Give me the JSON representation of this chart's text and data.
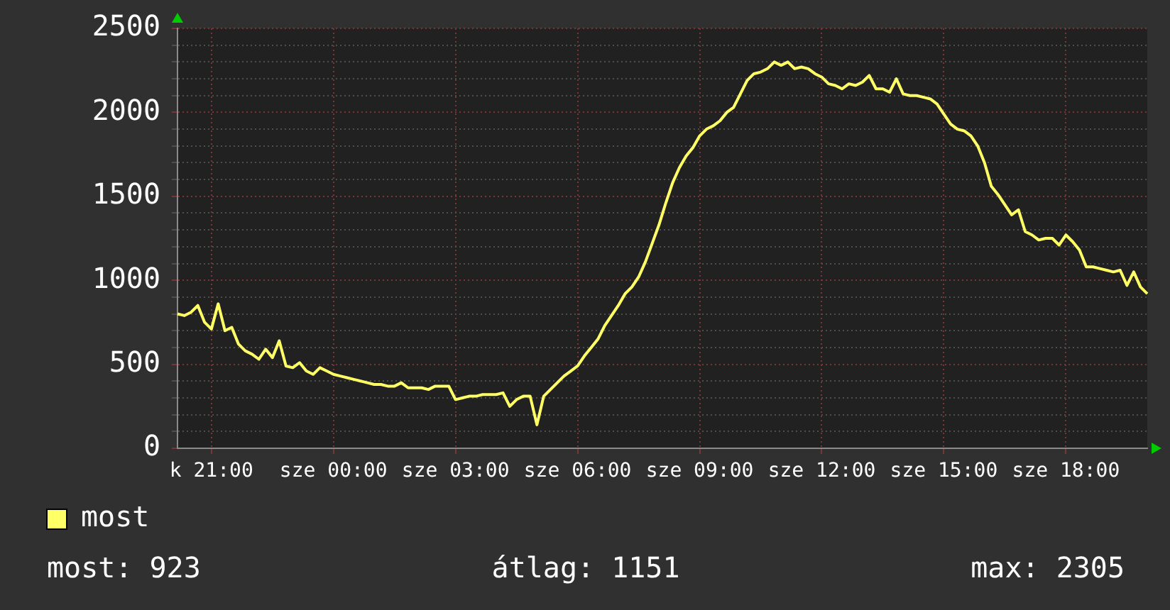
{
  "chart_data": {
    "type": "line",
    "categories": [
      null,
      null,
      null,
      null,
      null,
      "k 21:00",
      null,
      null,
      null,
      null,
      null,
      null,
      null,
      null,
      null,
      null,
      null,
      null,
      null,
      null,
      null,
      null,
      null,
      "sze 00:00",
      null,
      null,
      null,
      null,
      null,
      null,
      null,
      null,
      null,
      null,
      null,
      null,
      null,
      null,
      null,
      null,
      null,
      "sze 03:00",
      null,
      null,
      null,
      null,
      null,
      null,
      null,
      null,
      null,
      null,
      null,
      null,
      null,
      null,
      null,
      null,
      null,
      "sze 06:00",
      null,
      null,
      null,
      null,
      null,
      null,
      null,
      null,
      null,
      null,
      null,
      null,
      null,
      null,
      null,
      null,
      null,
      "sze 09:00",
      null,
      null,
      null,
      null,
      null,
      null,
      null,
      null,
      null,
      null,
      null,
      null,
      null,
      null,
      null,
      null,
      null,
      "sze 12:00",
      null,
      null,
      null,
      null,
      null,
      null,
      null,
      null,
      null,
      null,
      null,
      null,
      null,
      null,
      null,
      null,
      null,
      "sze 15:00",
      null,
      null,
      null,
      null,
      null,
      null,
      null,
      null,
      null,
      null,
      null,
      null,
      null,
      null,
      null,
      null,
      null,
      "sze 18:00",
      null,
      null,
      null,
      null,
      null,
      null,
      null,
      null,
      null,
      null,
      null,
      null
    ],
    "series": [
      {
        "name": "most",
        "color": "#ffff66",
        "values": [
          800,
          790,
          810,
          850,
          750,
          710,
          860,
          700,
          720,
          620,
          580,
          560,
          530,
          590,
          540,
          640,
          490,
          480,
          510,
          460,
          440,
          480,
          460,
          440,
          430,
          420,
          410,
          400,
          390,
          380,
          380,
          370,
          370,
          390,
          360,
          360,
          360,
          350,
          370,
          370,
          370,
          290,
          300,
          310,
          310,
          320,
          320,
          320,
          330,
          250,
          290,
          310,
          310,
          140,
          310,
          350,
          390,
          430,
          460,
          490,
          550,
          600,
          650,
          730,
          790,
          850,
          920,
          960,
          1020,
          1110,
          1220,
          1330,
          1460,
          1580,
          1670,
          1740,
          1790,
          1860,
          1900,
          1920,
          1950,
          2000,
          2030,
          2110,
          2190,
          2230,
          2240,
          2260,
          2300,
          2280,
          2300,
          2260,
          2270,
          2260,
          2230,
          2210,
          2170,
          2160,
          2140,
          2170,
          2160,
          2180,
          2220,
          2140,
          2140,
          2120,
          2200,
          2110,
          2100,
          2100,
          2090,
          2080,
          2050,
          1990,
          1930,
          1900,
          1890,
          1860,
          1800,
          1700,
          1560,
          1510,
          1450,
          1390,
          1420,
          1290,
          1270,
          1240,
          1250,
          1250,
          1210,
          1270,
          1230,
          1180,
          1080,
          1080,
          1070,
          1060,
          1050,
          1060,
          970,
          1050,
          960,
          920
        ]
      }
    ],
    "ylim": [
      0,
      2500
    ],
    "yticks": [
      0,
      {
        "value": 100,
        "label": null
      },
      {
        "value": 200,
        "label": null
      },
      {
        "value": 300,
        "label": null
      },
      {
        "value": 400,
        "label": null
      },
      500,
      {
        "value": 600,
        "label": null
      },
      {
        "value": 700,
        "label": null
      },
      {
        "value": 800,
        "label": null
      },
      {
        "value": 900,
        "label": null
      },
      1000,
      {
        "value": 1100,
        "label": null
      },
      {
        "value": 1200,
        "label": null
      },
      {
        "value": 1300,
        "label": null
      },
      {
        "value": 1400,
        "label": null
      },
      1500,
      {
        "value": 1600,
        "label": null
      },
      {
        "value": 1700,
        "label": null
      },
      {
        "value": 1800,
        "label": null
      },
      {
        "value": 1900,
        "label": null
      },
      2000,
      {
        "value": 2100,
        "label": null
      },
      {
        "value": 2200,
        "label": null
      },
      {
        "value": 2300,
        "label": null
      },
      {
        "value": 2400,
        "label": null
      },
      2500
    ],
    "grid": true,
    "legend": "bottom left",
    "marker": "none",
    "annotations": [
      "most: 923",
      "átlag: 1151",
      "max: 2305"
    ]
  }
}
